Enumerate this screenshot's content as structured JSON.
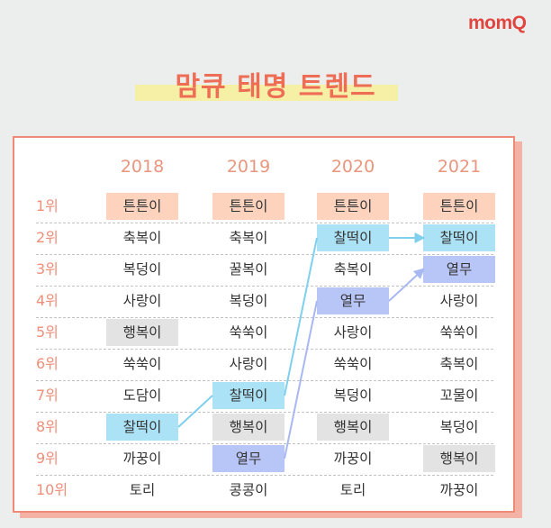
{
  "brand": {
    "logo": "momQ"
  },
  "title": "맘큐 태명 트렌드",
  "colors": {
    "accent": "#ee6d55",
    "peach": "#fdd3bd",
    "gray": "#e3e3e3",
    "blue": "#abe2f5",
    "lavender": "#b8c5f7"
  },
  "years": [
    "2018",
    "2019",
    "2020",
    "2021"
  ],
  "ranks": [
    "1위",
    "2위",
    "3위",
    "4위",
    "5위",
    "6위",
    "7위",
    "8위",
    "9위",
    "10위"
  ],
  "table": [
    {
      "year": "2018",
      "names": [
        "튼튼이",
        "축복이",
        "복덩이",
        "사랑이",
        "행복이",
        "쑥쑥이",
        "도담이",
        "찰떡이",
        "까꿍이",
        "토리"
      ]
    },
    {
      "year": "2019",
      "names": [
        "튼튼이",
        "축복이",
        "꿀복이",
        "복덩이",
        "쑥쑥이",
        "사랑이",
        "찰떡이",
        "행복이",
        "열무",
        "콩콩이"
      ]
    },
    {
      "year": "2020",
      "names": [
        "튼튼이",
        "찰떡이",
        "축복이",
        "열무",
        "사랑이",
        "쑥쑥이",
        "복덩이",
        "행복이",
        "까꿍이",
        "토리"
      ]
    },
    {
      "year": "2021",
      "names": [
        "튼튼이",
        "찰떡이",
        "열무",
        "사랑이",
        "쑥쑥이",
        "축복이",
        "꼬물이",
        "복덩이",
        "행복이",
        "까꿍이"
      ]
    }
  ],
  "highlights": {
    "튼튼이": "peach",
    "행복이": "gray",
    "찰떡이": "blue",
    "열무": "lavender"
  },
  "trend_links": [
    "찰떡이",
    "열무"
  ]
}
